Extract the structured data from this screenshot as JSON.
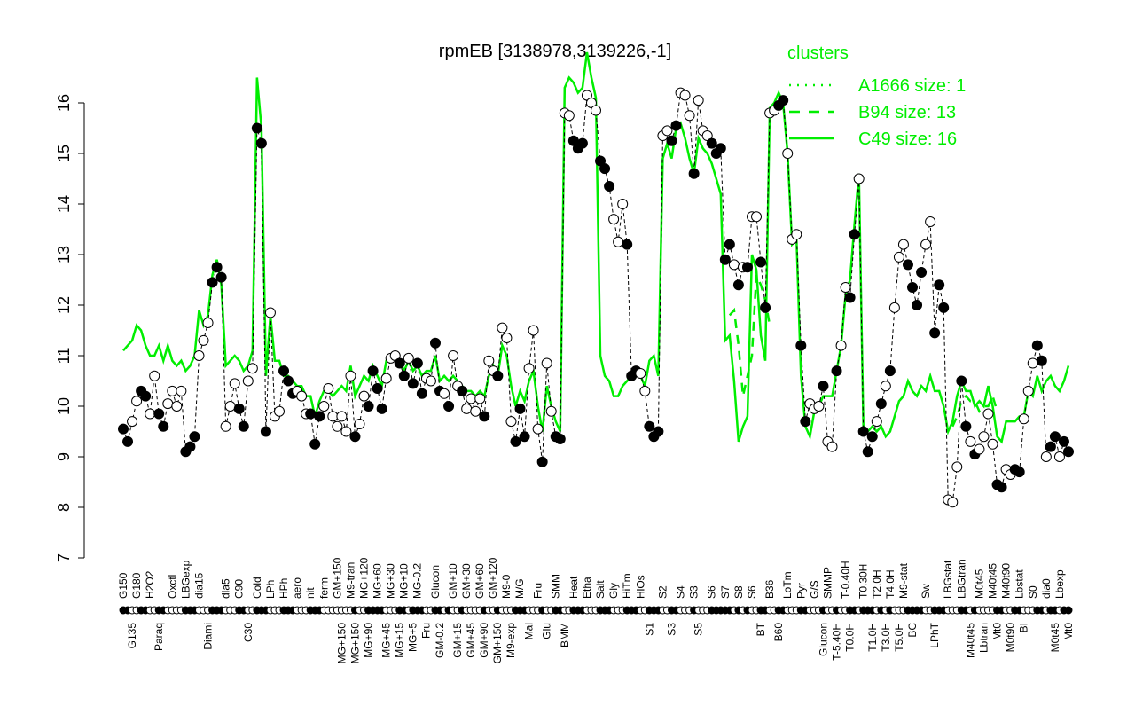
{
  "chart_data": {
    "type": "line",
    "title": "rpmEB [3138978,3139226,-1]",
    "xlabel": "",
    "ylabel": "",
    "ylim": [
      7,
      16
    ],
    "yticks": [
      7,
      8,
      9,
      10,
      11,
      12,
      13,
      14,
      15,
      16
    ],
    "grid": false,
    "legend": {
      "title": "clusters",
      "placement": "top-right",
      "entries": [
        {
          "label": "A1666 size: 1",
          "style": "dotted"
        },
        {
          "label": "B94 size: 13",
          "style": "dashed"
        },
        {
          "label": "C49 size: 16",
          "style": "solid"
        }
      ]
    },
    "colors": {
      "profile": "#000000",
      "cluster": "#00ee00"
    },
    "points": [
      [
        "G150",
        9.55,
        1,
        11.1
      ],
      [
        "G150",
        9.3,
        1,
        11.2
      ],
      [
        "G135",
        9.7,
        0,
        11.3
      ],
      [
        "G180",
        10.1,
        0,
        11.6
      ],
      [
        "G180",
        10.3,
        1,
        11.5
      ],
      [
        "G180",
        10.2,
        1,
        11.2
      ],
      [
        "H2O2",
        9.85,
        0,
        11.0
      ],
      [
        "H2O2",
        10.6,
        0,
        11.0
      ],
      [
        "Paraq",
        9.85,
        1,
        11.2
      ],
      [
        "Paraq",
        9.6,
        1,
        10.9
      ],
      [
        "Paraq",
        10.05,
        0,
        11.2
      ],
      [
        "Oxctl",
        10.3,
        0,
        10.9
      ],
      [
        "Oxctl",
        10.0,
        0,
        10.8
      ],
      [
        "Oxctl",
        10.3,
        0,
        10.9
      ],
      [
        "LBGexp",
        9.1,
        1,
        10.7
      ],
      [
        "LBGexp",
        9.2,
        1,
        10.8
      ],
      [
        "LBGexp",
        9.4,
        1,
        11.0
      ],
      [
        "dia15",
        11.0,
        0,
        11.9
      ],
      [
        "dia15",
        11.3,
        0,
        11.6
      ],
      [
        "Diami",
        11.65,
        0,
        11.8
      ],
      [
        "Diami",
        12.45,
        1,
        12.6
      ],
      [
        "Diami",
        12.75,
        1,
        12.9
      ],
      [
        "Diami",
        12.55,
        1,
        12.4
      ],
      [
        "dia5",
        9.6,
        0,
        10.8
      ],
      [
        "dia5",
        10.0,
        0,
        10.9
      ],
      [
        "dia5",
        10.45,
        0,
        11.0
      ],
      [
        "C90",
        9.95,
        1,
        10.9
      ],
      [
        "C90",
        9.6,
        1,
        10.7
      ],
      [
        "C30",
        10.5,
        0,
        10.8
      ],
      [
        "C30",
        10.75,
        0,
        11.1
      ],
      [
        "Cold",
        15.5,
        1,
        16.5
      ],
      [
        "Cold",
        15.2,
        1,
        15.5
      ],
      [
        "Cold",
        9.5,
        1,
        10.6
      ],
      [
        "LPh",
        11.85,
        0,
        11.8
      ],
      [
        "LPh",
        9.8,
        0,
        10.9
      ],
      [
        "LPh",
        9.9,
        0,
        10.9
      ],
      [
        "HPh",
        10.7,
        1,
        10.6
      ],
      [
        "HPh",
        10.5,
        1,
        10.6
      ],
      [
        "HPh",
        10.25,
        1,
        10.5
      ],
      [
        "aero",
        10.3,
        0,
        10.4
      ],
      [
        "aero",
        10.2,
        0,
        10.4
      ],
      [
        "aero",
        9.85,
        0,
        10.2
      ],
      [
        "nit",
        9.85,
        1,
        10.2
      ],
      [
        "nit",
        9.25,
        1,
        9.8
      ],
      [
        "nit",
        9.8,
        1,
        10.1
      ],
      [
        "ferm",
        10.0,
        0,
        10.3
      ],
      [
        "ferm",
        10.35,
        0,
        10.3
      ],
      [
        "ferm",
        9.8,
        0,
        10.2
      ],
      [
        "GM+150",
        9.6,
        0,
        10.3
      ],
      [
        "MG+150",
        9.8,
        0,
        10.4
      ],
      [
        "M9-tran",
        9.5,
        0,
        10.3
      ],
      [
        "M9-tran",
        10.6,
        0,
        10.8
      ],
      [
        "MG+150",
        9.4,
        1,
        10.2
      ],
      [
        "MG+120",
        9.65,
        0,
        10.4
      ],
      [
        "MG+120",
        10.2,
        0,
        10.6
      ],
      [
        "MG+90",
        10.0,
        1,
        10.5
      ],
      [
        "MG+60",
        10.7,
        1,
        10.8
      ],
      [
        "MG+60",
        10.35,
        1,
        10.6
      ],
      [
        "MG+60",
        9.95,
        1,
        10.4
      ],
      [
        "MG+45",
        10.55,
        0,
        10.9
      ],
      [
        "MG+30",
        10.95,
        0,
        11.0
      ],
      [
        "MG+15",
        11.0,
        0,
        11.0
      ],
      [
        "MG+10",
        10.85,
        1,
        10.9
      ],
      [
        "MG+5",
        10.6,
        1,
        10.7
      ],
      [
        "MG-0.2",
        10.95,
        0,
        10.9
      ],
      [
        "MG-0.2",
        10.45,
        1,
        10.7
      ],
      [
        "MG-0.2",
        10.85,
        1,
        10.8
      ],
      [
        "Fru",
        10.25,
        1,
        10.6
      ],
      [
        "Fru",
        10.55,
        0,
        10.7
      ],
      [
        "Fru",
        10.5,
        0,
        10.7
      ],
      [
        "Glucon",
        11.25,
        1,
        11.0
      ],
      [
        "GM-0.2",
        10.3,
        1,
        10.5
      ],
      [
        "GM-0.2",
        10.25,
        0,
        10.6
      ],
      [
        "GM-0.2",
        10.0,
        1,
        10.5
      ],
      [
        "GM+10",
        11.0,
        0,
        10.6
      ],
      [
        "GM+15",
        10.4,
        0,
        10.5
      ],
      [
        "GM+30",
        10.3,
        1,
        10.4
      ],
      [
        "GM+45",
        9.95,
        0,
        10.3
      ],
      [
        "GM+60",
        10.15,
        0,
        10.3
      ],
      [
        "GM+90",
        9.9,
        0,
        10.2
      ],
      [
        "GM+120",
        10.15,
        0,
        10.3
      ],
      [
        "GM+150",
        9.8,
        1,
        10.2
      ],
      [
        "M9-0",
        10.9,
        0,
        10.6
      ],
      [
        "M9-0",
        10.7,
        0,
        10.8
      ],
      [
        "M9-exp",
        10.6,
        1,
        10.6
      ],
      [
        "M9-exp",
        11.55,
        0,
        11.2
      ],
      [
        "M9-exp",
        11.35,
        0,
        11.0
      ],
      [
        "M/G",
        9.7,
        0,
        10.4
      ],
      [
        "M/G",
        9.3,
        1,
        10.0
      ],
      [
        "M/G",
        9.95,
        1,
        10.3
      ],
      [
        "M/G",
        9.4,
        1,
        10.1
      ],
      [
        "Mal",
        10.75,
        0,
        10.5
      ],
      [
        "Mal",
        11.5,
        0,
        10.7
      ],
      [
        "Fru",
        9.55,
        0,
        10.0
      ],
      [
        "Fru",
        8.9,
        1,
        9.5
      ],
      [
        "Glu",
        10.85,
        0,
        10.4
      ],
      [
        "Glu",
        9.9,
        0,
        10.0
      ],
      [
        "SMM",
        9.4,
        1,
        9.7
      ],
      [
        "SMM",
        9.35,
        1,
        9.5
      ],
      [
        "BMM",
        15.8,
        0,
        16.3
      ],
      [
        "BMM",
        15.75,
        0,
        16.5
      ],
      [
        "Heat",
        15.25,
        1,
        16.4
      ],
      [
        "Heat",
        15.1,
        1,
        16.2
      ],
      [
        "Heat",
        15.2,
        1,
        16.3
      ],
      [
        "Etha",
        16.15,
        0,
        17.0
      ],
      [
        "Etha",
        16.0,
        0,
        16.5
      ],
      [
        "Etha",
        15.85,
        0,
        16.1
      ],
      [
        "Salt",
        14.85,
        1,
        11.0
      ],
      [
        "Salt",
        14.7,
        1,
        10.6
      ],
      [
        "Salt",
        14.35,
        1,
        10.5
      ],
      [
        "Gly",
        13.7,
        0,
        10.2
      ],
      [
        "Gly",
        13.25,
        0,
        10.2
      ],
      [
        "Gly",
        14.0,
        0,
        10.4
      ],
      [
        "HiTm",
        13.2,
        1,
        10.5
      ],
      [
        "HiTm",
        10.6,
        1,
        10.6
      ],
      [
        "HiTm",
        10.7,
        1,
        10.7
      ],
      [
        "HiOs",
        10.65,
        0,
        10.6
      ],
      [
        "HiOs",
        10.3,
        0,
        10.4
      ],
      [
        "S1",
        9.6,
        1,
        10.9
      ],
      [
        "S1",
        9.4,
        1,
        11.0
      ],
      [
        "S1",
        9.5,
        1,
        10.6
      ],
      [
        "S2",
        15.35,
        0,
        14.9
      ],
      [
        "S2",
        15.45,
        0,
        15.2
      ],
      [
        "S3",
        15.25,
        1,
        14.9
      ],
      [
        "S3",
        15.55,
        1,
        15.5
      ],
      [
        "S4",
        16.2,
        0,
        15.6
      ],
      [
        "S4",
        16.15,
        0,
        15.3
      ],
      [
        "S4",
        15.75,
        0,
        14.9
      ],
      [
        "S3",
        14.6,
        1,
        14.6
      ],
      [
        "S5",
        16.05,
        0,
        15.3
      ],
      [
        "S5",
        15.45,
        0,
        15.1
      ],
      [
        "S5",
        15.35,
        0,
        15.0
      ],
      [
        "S6",
        15.2,
        1,
        14.8
      ],
      [
        "S6",
        15.0,
        1,
        14.5
      ],
      [
        "S6",
        15.1,
        1,
        14.2
      ],
      [
        "S7",
        12.9,
        1,
        11.3
      ],
      [
        "S7",
        13.2,
        1,
        11.4
      ],
      [
        "S7",
        12.8,
        0,
        10.5
      ],
      [
        "S8",
        12.4,
        1,
        9.3
      ],
      [
        "S8",
        12.75,
        0,
        9.6
      ],
      [
        "S8",
        12.75,
        1,
        9.8
      ],
      [
        "S6",
        13.75,
        0,
        13.0
      ],
      [
        "S6",
        13.75,
        0,
        12.7
      ],
      [
        "BT",
        12.85,
        1,
        11.4
      ],
      [
        "BT",
        11.95,
        1,
        10.9
      ],
      [
        "B36",
        15.8,
        0,
        15.9
      ],
      [
        "B36",
        15.85,
        0,
        16.0
      ],
      [
        "B60",
        15.95,
        1,
        16.2
      ],
      [
        "B60",
        16.05,
        1,
        16.0
      ],
      [
        "LoTm",
        15.0,
        0,
        15.0
      ],
      [
        "LoTm",
        13.3,
        0,
        13.2
      ],
      [
        "LoTm",
        13.4,
        0,
        13.3
      ],
      [
        "Pyr",
        11.2,
        1,
        10.6
      ],
      [
        "Pyr",
        9.7,
        1,
        9.6
      ],
      [
        "Pyr",
        10.05,
        0,
        9.4
      ],
      [
        "G/S",
        9.95,
        0,
        9.9
      ],
      [
        "G/S",
        10.0,
        0,
        10.0
      ],
      [
        "Glucon",
        10.4,
        1,
        10.2
      ],
      [
        "SMMP",
        9.3,
        0,
        10.2
      ],
      [
        "SMMP",
        9.2,
        0,
        10.2
      ],
      [
        "T-5.40H",
        10.7,
        1,
        10.7
      ],
      [
        "T-5.40H",
        11.2,
        0,
        11.2
      ],
      [
        "T-0.40H",
        12.35,
        0,
        12.2
      ],
      [
        "T0.0H",
        12.15,
        1,
        12.5
      ],
      [
        "T0.0H",
        13.4,
        1,
        13.6
      ],
      [
        "T0.0H",
        14.5,
        0,
        14.6
      ],
      [
        "T0.30H",
        9.5,
        1,
        9.6
      ],
      [
        "T0.30H",
        9.1,
        1,
        9.5
      ],
      [
        "T1.0H",
        9.4,
        1,
        9.6
      ],
      [
        "T2.0H",
        9.7,
        0,
        9.5
      ],
      [
        "T3.0H",
        10.05,
        1,
        9.6
      ],
      [
        "T4.0H",
        10.4,
        0,
        9.4
      ],
      [
        "T5.0H",
        10.7,
        1,
        9.5
      ],
      [
        "M9-stat",
        11.95,
        0,
        9.8
      ],
      [
        "M9-stat",
        12.95,
        0,
        10.1
      ],
      [
        "M9-stat",
        13.2,
        0,
        10.2
      ],
      [
        "BC",
        12.8,
        1,
        10.5
      ],
      [
        "BC",
        12.35,
        1,
        10.3
      ],
      [
        "BC",
        12.0,
        1,
        10.2
      ],
      [
        "BC",
        12.65,
        1,
        10.4
      ],
      [
        "Sw",
        13.2,
        0,
        10.3
      ],
      [
        "Sw",
        13.65,
        0,
        10.6
      ],
      [
        "LPhT",
        11.45,
        1,
        10.3
      ],
      [
        "LPhT",
        12.4,
        1,
        10.3
      ],
      [
        "LPhT",
        11.95,
        1,
        10.0
      ],
      [
        "LBGstat",
        8.15,
        0,
        9.5
      ],
      [
        "LBGstat",
        8.1,
        0,
        9.7
      ],
      [
        "LBGstat",
        8.8,
        0,
        10.2
      ],
      [
        "LBGtran",
        10.5,
        1,
        10.5
      ],
      [
        "LBGtran",
        9.6,
        1,
        10.3
      ],
      [
        "M40t45",
        9.3,
        0,
        10.3
      ],
      [
        "M40t45",
        9.05,
        1,
        10.0
      ],
      [
        "M0t45",
        9.15,
        0,
        10.1
      ],
      [
        "Lbtran",
        9.4,
        0,
        10.0
      ],
      [
        "Lbtran",
        9.85,
        0,
        10.4
      ],
      [
        "M40t45",
        9.25,
        0,
        10.0
      ],
      [
        "Mt0",
        8.45,
        1,
        9.4
      ],
      [
        "M40t90",
        8.4,
        1,
        9.3
      ],
      [
        "M0t90",
        8.75,
        0,
        9.7
      ],
      [
        "M0t90",
        8.65,
        0,
        9.7
      ],
      [
        "Lbstat",
        8.75,
        1,
        9.7
      ],
      [
        "Lbstat",
        8.7,
        1,
        9.8
      ],
      [
        "BI",
        9.75,
        0,
        9.8
      ],
      [
        "BI",
        10.3,
        0,
        10.3
      ],
      [
        "S0",
        10.85,
        0,
        10.2
      ],
      [
        "S0",
        11.2,
        1,
        10.6
      ],
      [
        "S0",
        10.9,
        1,
        10.3
      ],
      [
        "dia0",
        9.0,
        0,
        10.5
      ],
      [
        "dia0",
        9.2,
        1,
        10.6
      ],
      [
        "M0t45",
        9.4,
        1,
        10.4
      ],
      [
        "Lbexp",
        9.0,
        0,
        10.3
      ],
      [
        "Lbexp",
        9.3,
        1,
        10.5
      ],
      [
        "Mt0",
        9.1,
        1,
        10.8
      ]
    ],
    "b94_segments": [
      {
        "start": 136,
        "values": [
          11.8,
          11.9,
          11.2,
          10.2,
          10.6,
          11.0,
          12.6,
          12.4,
          12.1,
          11.6
        ]
      },
      {
        "start": 186,
        "values": [
          9.6,
          9.8,
          10.1,
          10.2,
          10.1,
          10.1,
          9.9,
          10.0,
          10.0,
          10.2,
          9.9
        ]
      }
    ]
  }
}
